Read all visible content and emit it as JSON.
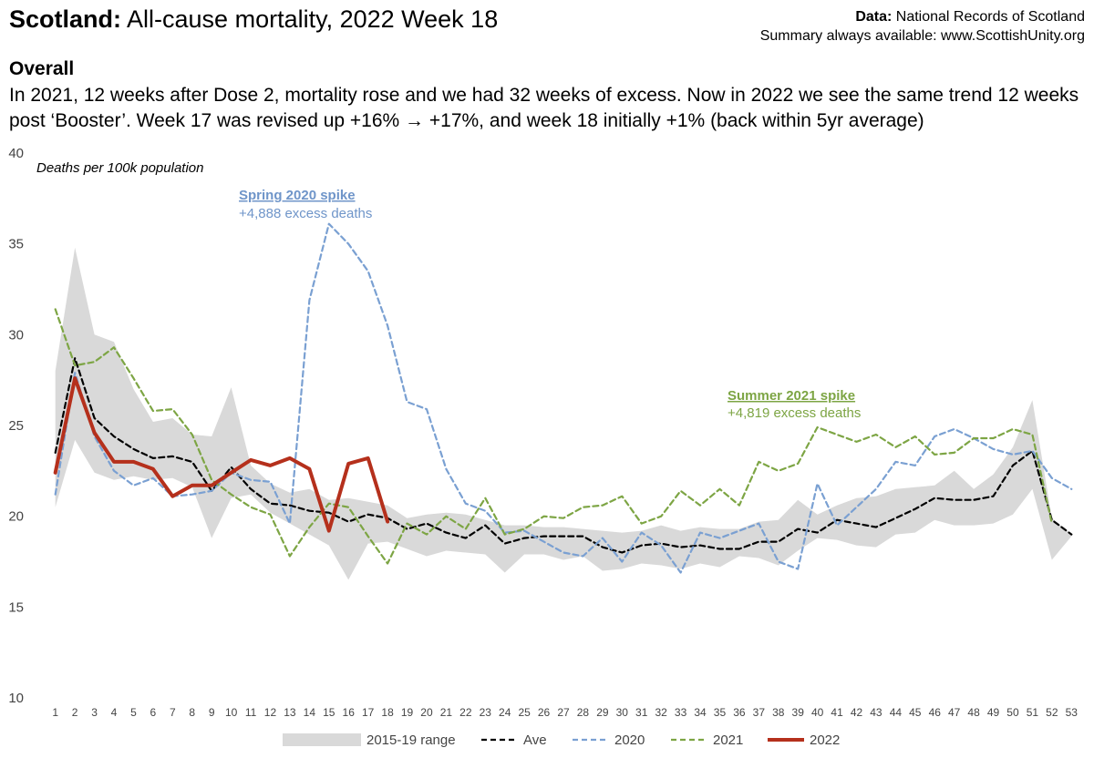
{
  "header": {
    "title_bold": "Scotland:",
    "title_rest": " All-cause mortality, 2022 Week 18",
    "source_label": "Data:",
    "source_name": " National Records of Scotland",
    "summary_line": "Summary always available: www.ScottishUnity.org"
  },
  "overall": {
    "heading": "Overall",
    "text": "In 2021, 12 weeks after Dose 2, mortality rose and we had 32 weeks of excess. Now in 2022 we see the same trend 12 weeks post ‘Booster’. Week 17 was revised up +16% → +17%, and week 18 initially +1% (back within 5yr average)"
  },
  "colors": {
    "range": "#d9d9d9",
    "ave": "#000000",
    "y2020": "#7aa0d2",
    "y2021": "#7da544",
    "y2022": "#b5301c",
    "annot2020": "#6f95c9",
    "annot2021": "#7da544"
  },
  "chart_data": {
    "type": "line",
    "ylabel": "Deaths per 100k population",
    "ylim": [
      10,
      40
    ],
    "yticks": [
      10,
      15,
      20,
      25,
      30,
      35,
      40
    ],
    "x": [
      1,
      2,
      3,
      4,
      5,
      6,
      7,
      8,
      9,
      10,
      11,
      12,
      13,
      14,
      15,
      16,
      17,
      18,
      19,
      20,
      21,
      22,
      23,
      24,
      25,
      26,
      27,
      28,
      29,
      30,
      31,
      32,
      33,
      34,
      35,
      36,
      37,
      38,
      39,
      40,
      41,
      42,
      43,
      44,
      45,
      46,
      47,
      48,
      49,
      50,
      51,
      52,
      53
    ],
    "range_2015_19": {
      "name": "2015-19 range",
      "low": [
        20.5,
        24.2,
        22.4,
        22.0,
        22.2,
        22.0,
        22.1,
        21.6,
        18.8,
        21.0,
        21.2,
        20.2,
        19.6,
        19.0,
        18.4,
        16.5,
        18.5,
        18.6,
        18.2,
        17.8,
        18.1,
        18.0,
        17.9,
        16.9,
        17.9,
        17.9,
        17.6,
        17.8,
        17.0,
        17.1,
        17.4,
        17.3,
        17.1,
        17.4,
        17.2,
        17.8,
        17.7,
        17.3,
        18.1,
        18.8,
        18.7,
        18.4,
        18.3,
        19.0,
        19.1,
        19.8,
        19.5,
        19.5,
        19.6,
        20.1,
        21.5,
        17.6,
        18.9
      ],
      "high": [
        28.0,
        34.8,
        30.0,
        29.6,
        27.0,
        25.2,
        25.4,
        24.5,
        24.4,
        27.1,
        22.8,
        21.8,
        21.3,
        21.5,
        20.9,
        21.0,
        20.8,
        20.6,
        19.9,
        20.1,
        20.2,
        20.1,
        19.8,
        19.5,
        19.5,
        19.4,
        19.4,
        19.3,
        19.2,
        19.1,
        19.2,
        19.5,
        19.2,
        19.4,
        19.3,
        19.3,
        19.7,
        19.8,
        20.9,
        20.1,
        20.6,
        21.0,
        21.1,
        21.5,
        21.6,
        21.7,
        22.5,
        21.5,
        22.3,
        23.8,
        26.4,
        19.9,
        19.0
      ]
    },
    "series": [
      {
        "name": "Ave",
        "values": [
          23.5,
          28.7,
          25.4,
          24.4,
          23.7,
          23.2,
          23.3,
          23.0,
          21.4,
          22.7,
          21.5,
          20.7,
          20.6,
          20.3,
          20.2,
          19.7,
          20.1,
          19.9,
          19.3,
          19.6,
          19.1,
          18.8,
          19.5,
          18.5,
          18.8,
          18.9,
          18.9,
          18.9,
          18.3,
          18.0,
          18.4,
          18.5,
          18.3,
          18.4,
          18.2,
          18.2,
          18.6,
          18.6,
          19.3,
          19.1,
          19.8,
          19.6,
          19.4,
          19.9,
          20.4,
          21.0,
          20.9,
          20.9,
          21.1,
          22.8,
          23.6,
          19.8,
          19.0
        ]
      },
      {
        "name": "2020",
        "values": [
          21.2,
          27.9,
          24.4,
          22.5,
          21.7,
          22.1,
          21.1,
          21.2,
          21.4,
          22.4,
          22.0,
          21.9,
          19.6,
          31.9,
          36.1,
          35.0,
          33.5,
          30.5,
          26.3,
          25.9,
          22.6,
          20.7,
          20.3,
          19.1,
          19.2,
          18.6,
          18.0,
          17.8,
          18.8,
          17.5,
          19.1,
          18.4,
          16.9,
          19.1,
          18.8,
          19.2,
          19.6,
          17.5,
          17.1,
          21.8,
          19.5,
          20.5,
          21.5,
          23.0,
          22.8,
          24.4,
          24.8,
          24.3,
          23.7,
          23.4,
          23.6,
          22.1,
          21.5
        ]
      },
      {
        "name": "2021",
        "values": [
          31.4,
          28.3,
          28.5,
          29.3,
          27.6,
          25.8,
          25.9,
          24.5,
          22.0,
          21.2,
          20.5,
          20.1,
          17.8,
          19.4,
          20.7,
          20.5,
          18.9,
          17.4,
          19.6,
          19.0,
          20.0,
          19.3,
          21.0,
          19.0,
          19.3,
          20.0,
          19.9,
          20.5,
          20.6,
          21.1,
          19.6,
          20.0,
          21.4,
          20.6,
          21.5,
          20.6,
          23.0,
          22.5,
          22.9,
          24.9,
          24.5,
          24.1,
          24.5,
          23.8,
          24.4,
          23.4,
          23.5,
          24.3,
          24.3,
          24.8,
          24.5,
          19.6,
          null
        ]
      },
      {
        "name": "2022",
        "values": [
          22.4,
          27.6,
          24.6,
          23.0,
          23.0,
          22.6,
          21.1,
          21.7,
          21.7,
          22.4,
          23.1,
          22.8,
          23.2,
          22.6,
          19.2,
          22.9,
          23.2,
          19.7,
          null,
          null,
          null,
          null,
          null,
          null,
          null,
          null,
          null,
          null,
          null,
          null,
          null,
          null,
          null,
          null,
          null,
          null,
          null,
          null,
          null,
          null,
          null,
          null,
          null,
          null,
          null,
          null,
          null,
          null,
          null,
          null,
          null,
          null,
          null
        ]
      }
    ],
    "legend": [
      "2015-19 range",
      "Ave",
      "2020",
      "2021",
      "2022"
    ],
    "legend_position": "bottom",
    "annotations": [
      {
        "title": "Spring 2020 spike",
        "text": "+4,888 excess deaths"
      },
      {
        "title": "Summer 2021 spike",
        "text": "+4,819 excess deaths"
      }
    ]
  }
}
